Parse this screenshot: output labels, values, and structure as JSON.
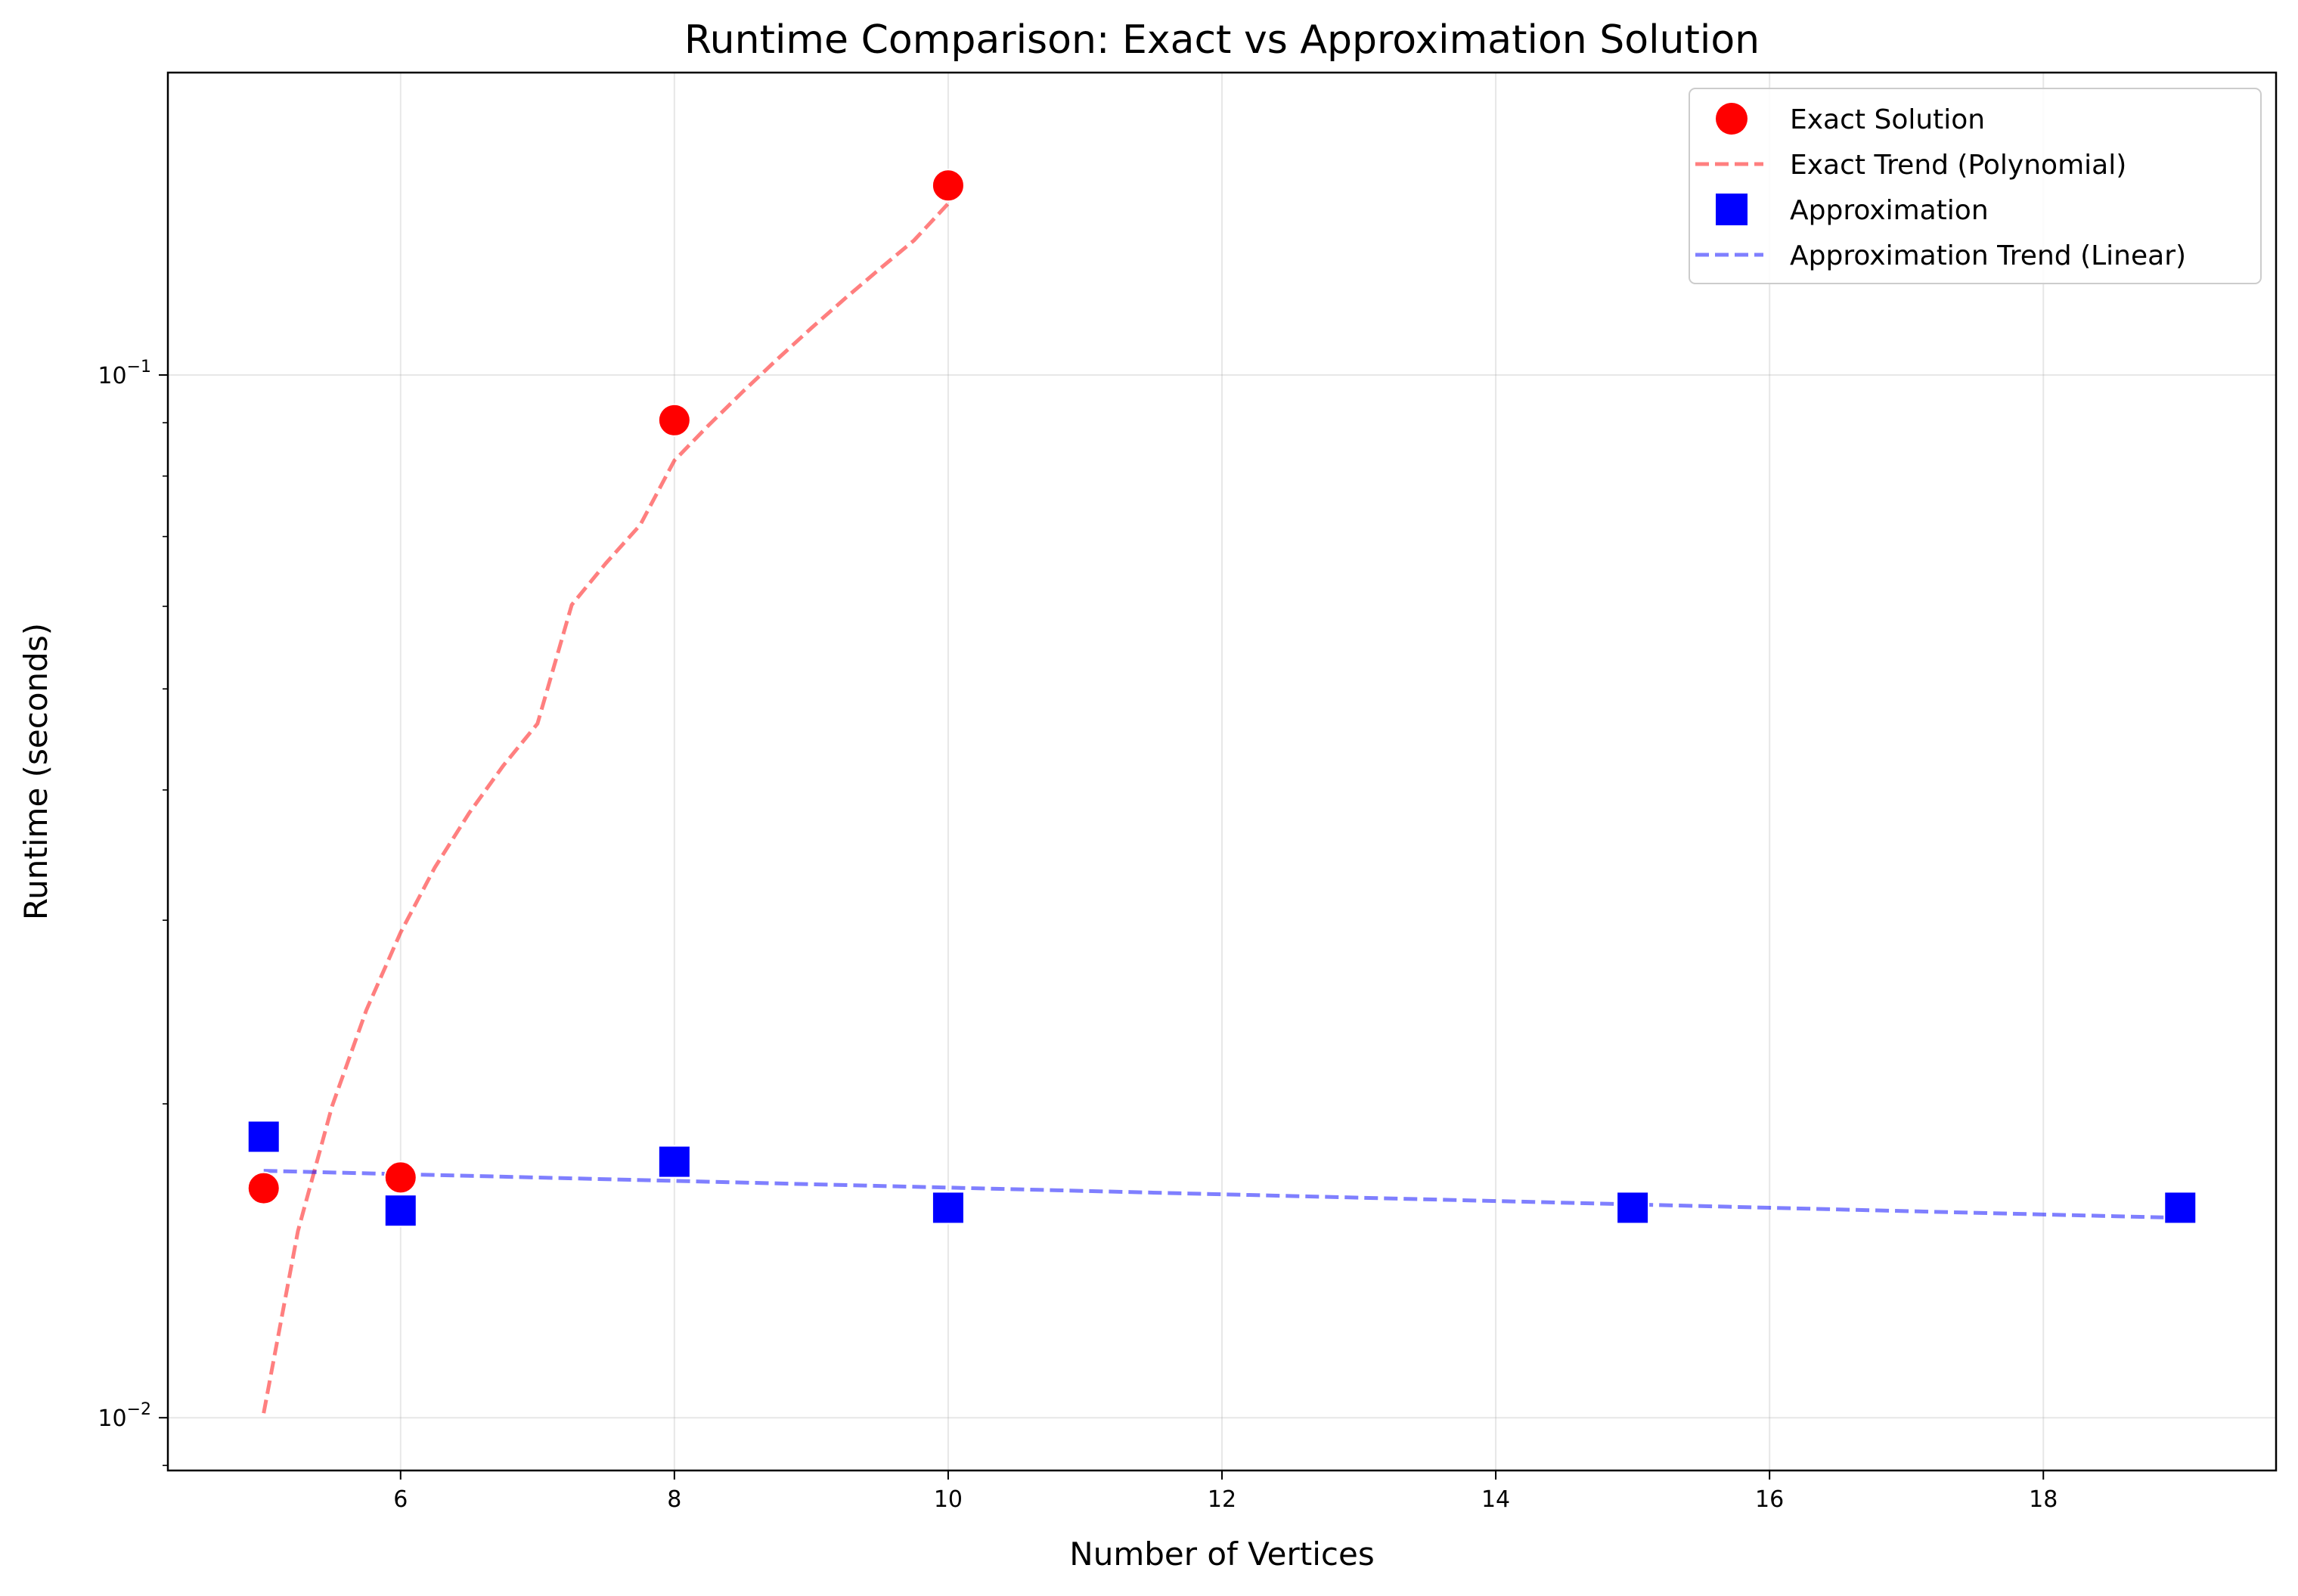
{
  "chart_data": {
    "type": "scatter",
    "title": "Runtime Comparison: Exact vs Approximation Solution",
    "xlabel": "Number of Vertices",
    "ylabel": "Runtime (seconds)",
    "xlim": [
      4.3,
      19.7
    ],
    "ylim": [
      0.0089,
      0.195
    ],
    "yscale": "log",
    "grid": true,
    "legend_position": "top-right",
    "x_ticks": [
      6,
      8,
      10,
      12,
      14,
      16,
      18
    ],
    "x_tick_labels": [
      "6",
      "8",
      "10",
      "12",
      "14",
      "16",
      "18"
    ],
    "y_ticks": [
      0.01,
      0.1
    ],
    "y_tick_labels": [
      {
        "base": "10",
        "exp": "−2"
      },
      {
        "base": "10",
        "exp": "−1"
      }
    ],
    "series": [
      {
        "name": "Exact Solution",
        "kind": "scatter",
        "marker": "circle",
        "color": "#ff0000",
        "x": [
          5,
          6,
          8,
          10
        ],
        "y": [
          0.0166,
          0.017,
          0.0905,
          0.152
        ]
      },
      {
        "name": "Exact Trend (Polynomial)",
        "kind": "line",
        "style": "dashed",
        "color": "#ff0000",
        "opacity": 0.5,
        "x": [
          5,
          5.25,
          5.5,
          5.75,
          6,
          6.25,
          6.5,
          6.75,
          7,
          7.25,
          7.5,
          7.75,
          8,
          8.25,
          8.5,
          8.75,
          9,
          9.25,
          9.5,
          9.75,
          10
        ],
        "y": [
          0.0101,
          0.0151,
          0.0199,
          0.0246,
          0.0292,
          0.0337,
          0.038,
          0.0422,
          0.0463,
          0.0602,
          0.066,
          0.0718,
          0.0828,
          0.0895,
          0.0964,
          0.1035,
          0.1109,
          0.1185,
          0.1264,
          0.1346,
          0.146
        ]
      },
      {
        "name": "Approximation",
        "kind": "scatter",
        "marker": "square",
        "color": "#0000ff",
        "x": [
          5,
          6,
          8,
          10,
          15,
          19
        ],
        "y": [
          0.0186,
          0.0158,
          0.0176,
          0.0159,
          0.0159,
          0.0159
        ]
      },
      {
        "name": "Approximation Trend (Linear)",
        "kind": "line",
        "style": "dashed",
        "color": "#0000ff",
        "opacity": 0.5,
        "x": [
          5,
          19
        ],
        "y": [
          0.01725,
          0.01555
        ]
      }
    ]
  }
}
